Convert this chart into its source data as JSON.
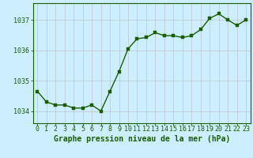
{
  "x": [
    0,
    1,
    2,
    3,
    4,
    5,
    6,
    7,
    8,
    9,
    10,
    11,
    12,
    13,
    14,
    15,
    16,
    17,
    18,
    19,
    20,
    21,
    22,
    23
  ],
  "y": [
    1034.65,
    1034.3,
    1034.2,
    1034.2,
    1034.1,
    1034.1,
    1034.2,
    1034.0,
    1034.65,
    1035.3,
    1036.05,
    1036.38,
    1036.42,
    1036.58,
    1036.48,
    1036.48,
    1036.42,
    1036.48,
    1036.68,
    1037.05,
    1037.2,
    1037.0,
    1036.82,
    1037.0
  ],
  "line_color": "#1a5c00",
  "marker_color": "#1a5c00",
  "bg_color": "#cceeff",
  "grid_color": "#bbbbbb",
  "border_color": "#1a5c00",
  "xlabel": "Graphe pression niveau de la mer (hPa)",
  "xlabel_color": "#1a5c00",
  "tick_color": "#1a5c00",
  "ylim": [
    1033.6,
    1037.55
  ],
  "yticks": [
    1034,
    1035,
    1036,
    1037
  ],
  "xticks": [
    0,
    1,
    2,
    3,
    4,
    5,
    6,
    7,
    8,
    9,
    10,
    11,
    12,
    13,
    14,
    15,
    16,
    17,
    18,
    19,
    20,
    21,
    22,
    23
  ],
  "xlabel_fontsize": 7,
  "tick_fontsize": 6,
  "line_width": 1.0,
  "marker_size": 2.2
}
